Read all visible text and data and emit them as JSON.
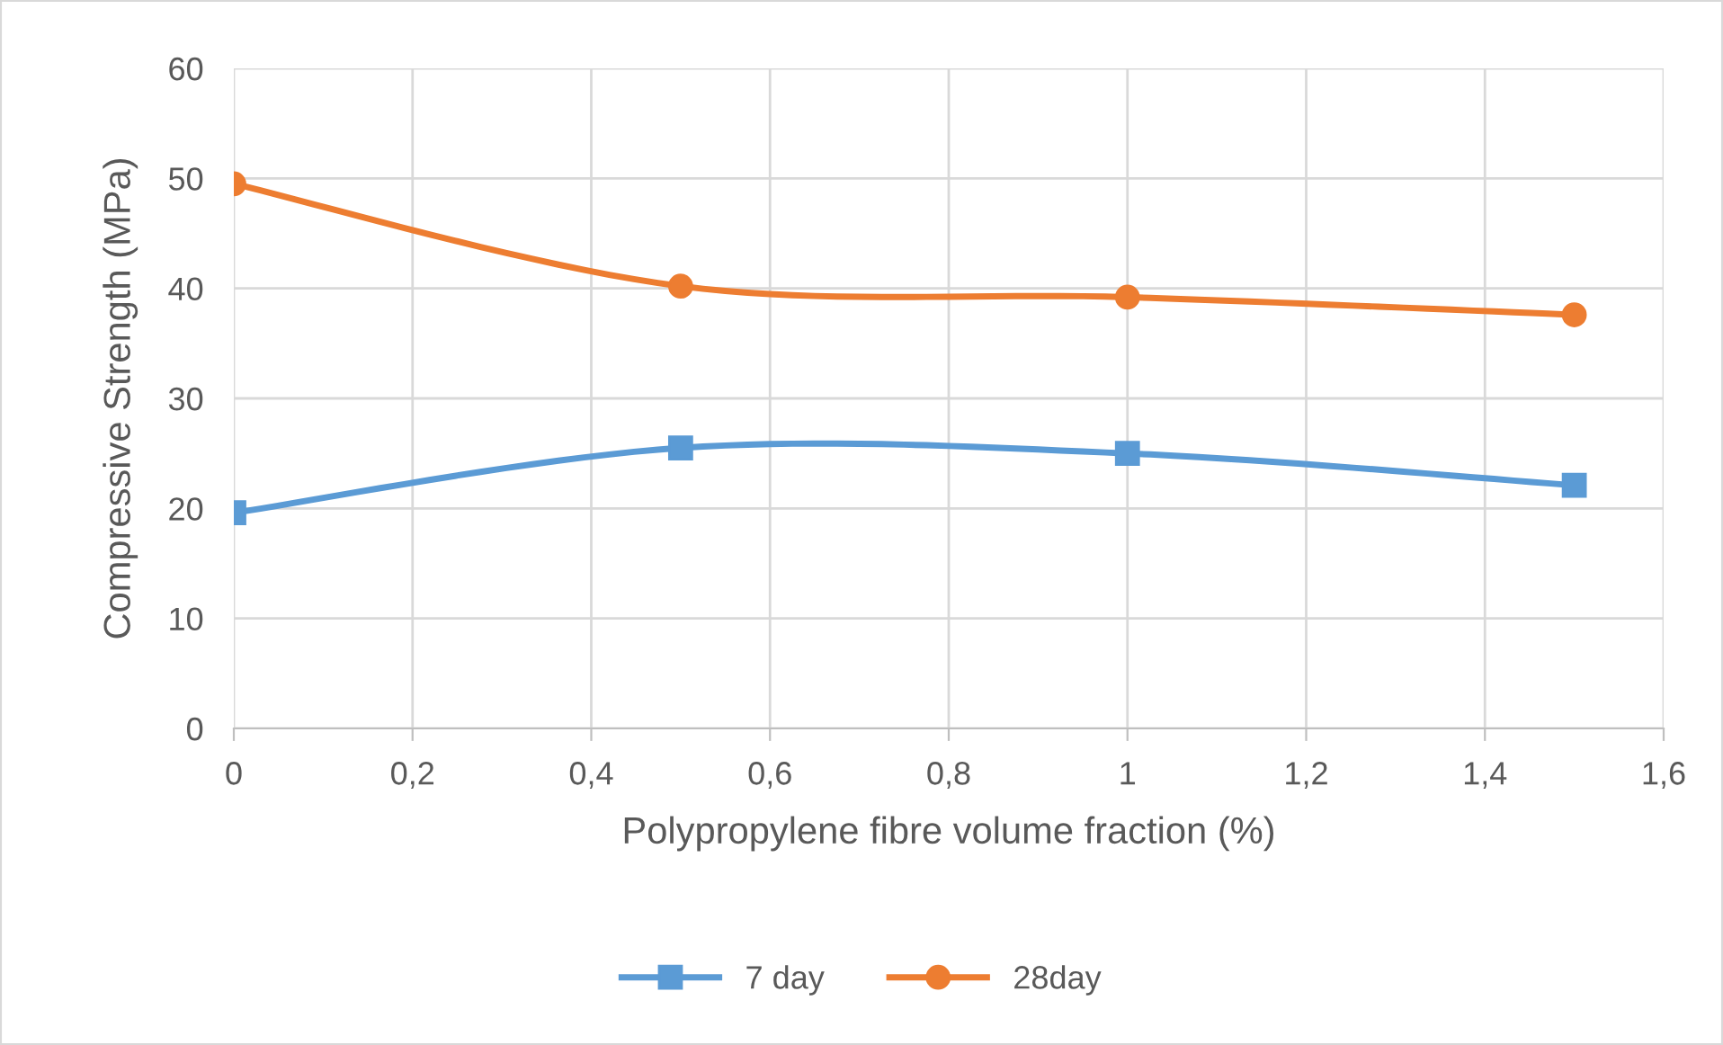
{
  "chart_data": {
    "type": "line",
    "xlabel": "Polypropylene fibre volume fraction (%)",
    "ylabel": "Compressive Strength (MPa)",
    "x": [
      0,
      0.5,
      1,
      1.5
    ],
    "series": [
      {
        "name": "7 day",
        "color": "#5b9bd5",
        "marker": "square",
        "values": [
          19.6,
          25.5,
          25.0,
          22.1
        ]
      },
      {
        "name": "28day",
        "color": "#ed7d31",
        "marker": "circle",
        "values": [
          49.5,
          40.2,
          39.2,
          37.6
        ]
      }
    ],
    "xlim": [
      0,
      1.6
    ],
    "xticks": [
      {
        "value": 0,
        "label": "0"
      },
      {
        "value": 0.2,
        "label": "0,2"
      },
      {
        "value": 0.4,
        "label": "0,4"
      },
      {
        "value": 0.6,
        "label": "0,6"
      },
      {
        "value": 0.8,
        "label": "0,8"
      },
      {
        "value": 1,
        "label": "1"
      },
      {
        "value": 1.2,
        "label": "1,2"
      },
      {
        "value": 1.4,
        "label": "1,4"
      },
      {
        "value": 1.6,
        "label": "1,6"
      }
    ],
    "ylim": [
      0,
      60
    ],
    "yticks": [
      0,
      10,
      20,
      30,
      40,
      50,
      60
    ],
    "grid": true,
    "legend": "bottom",
    "line_style": "solid"
  }
}
